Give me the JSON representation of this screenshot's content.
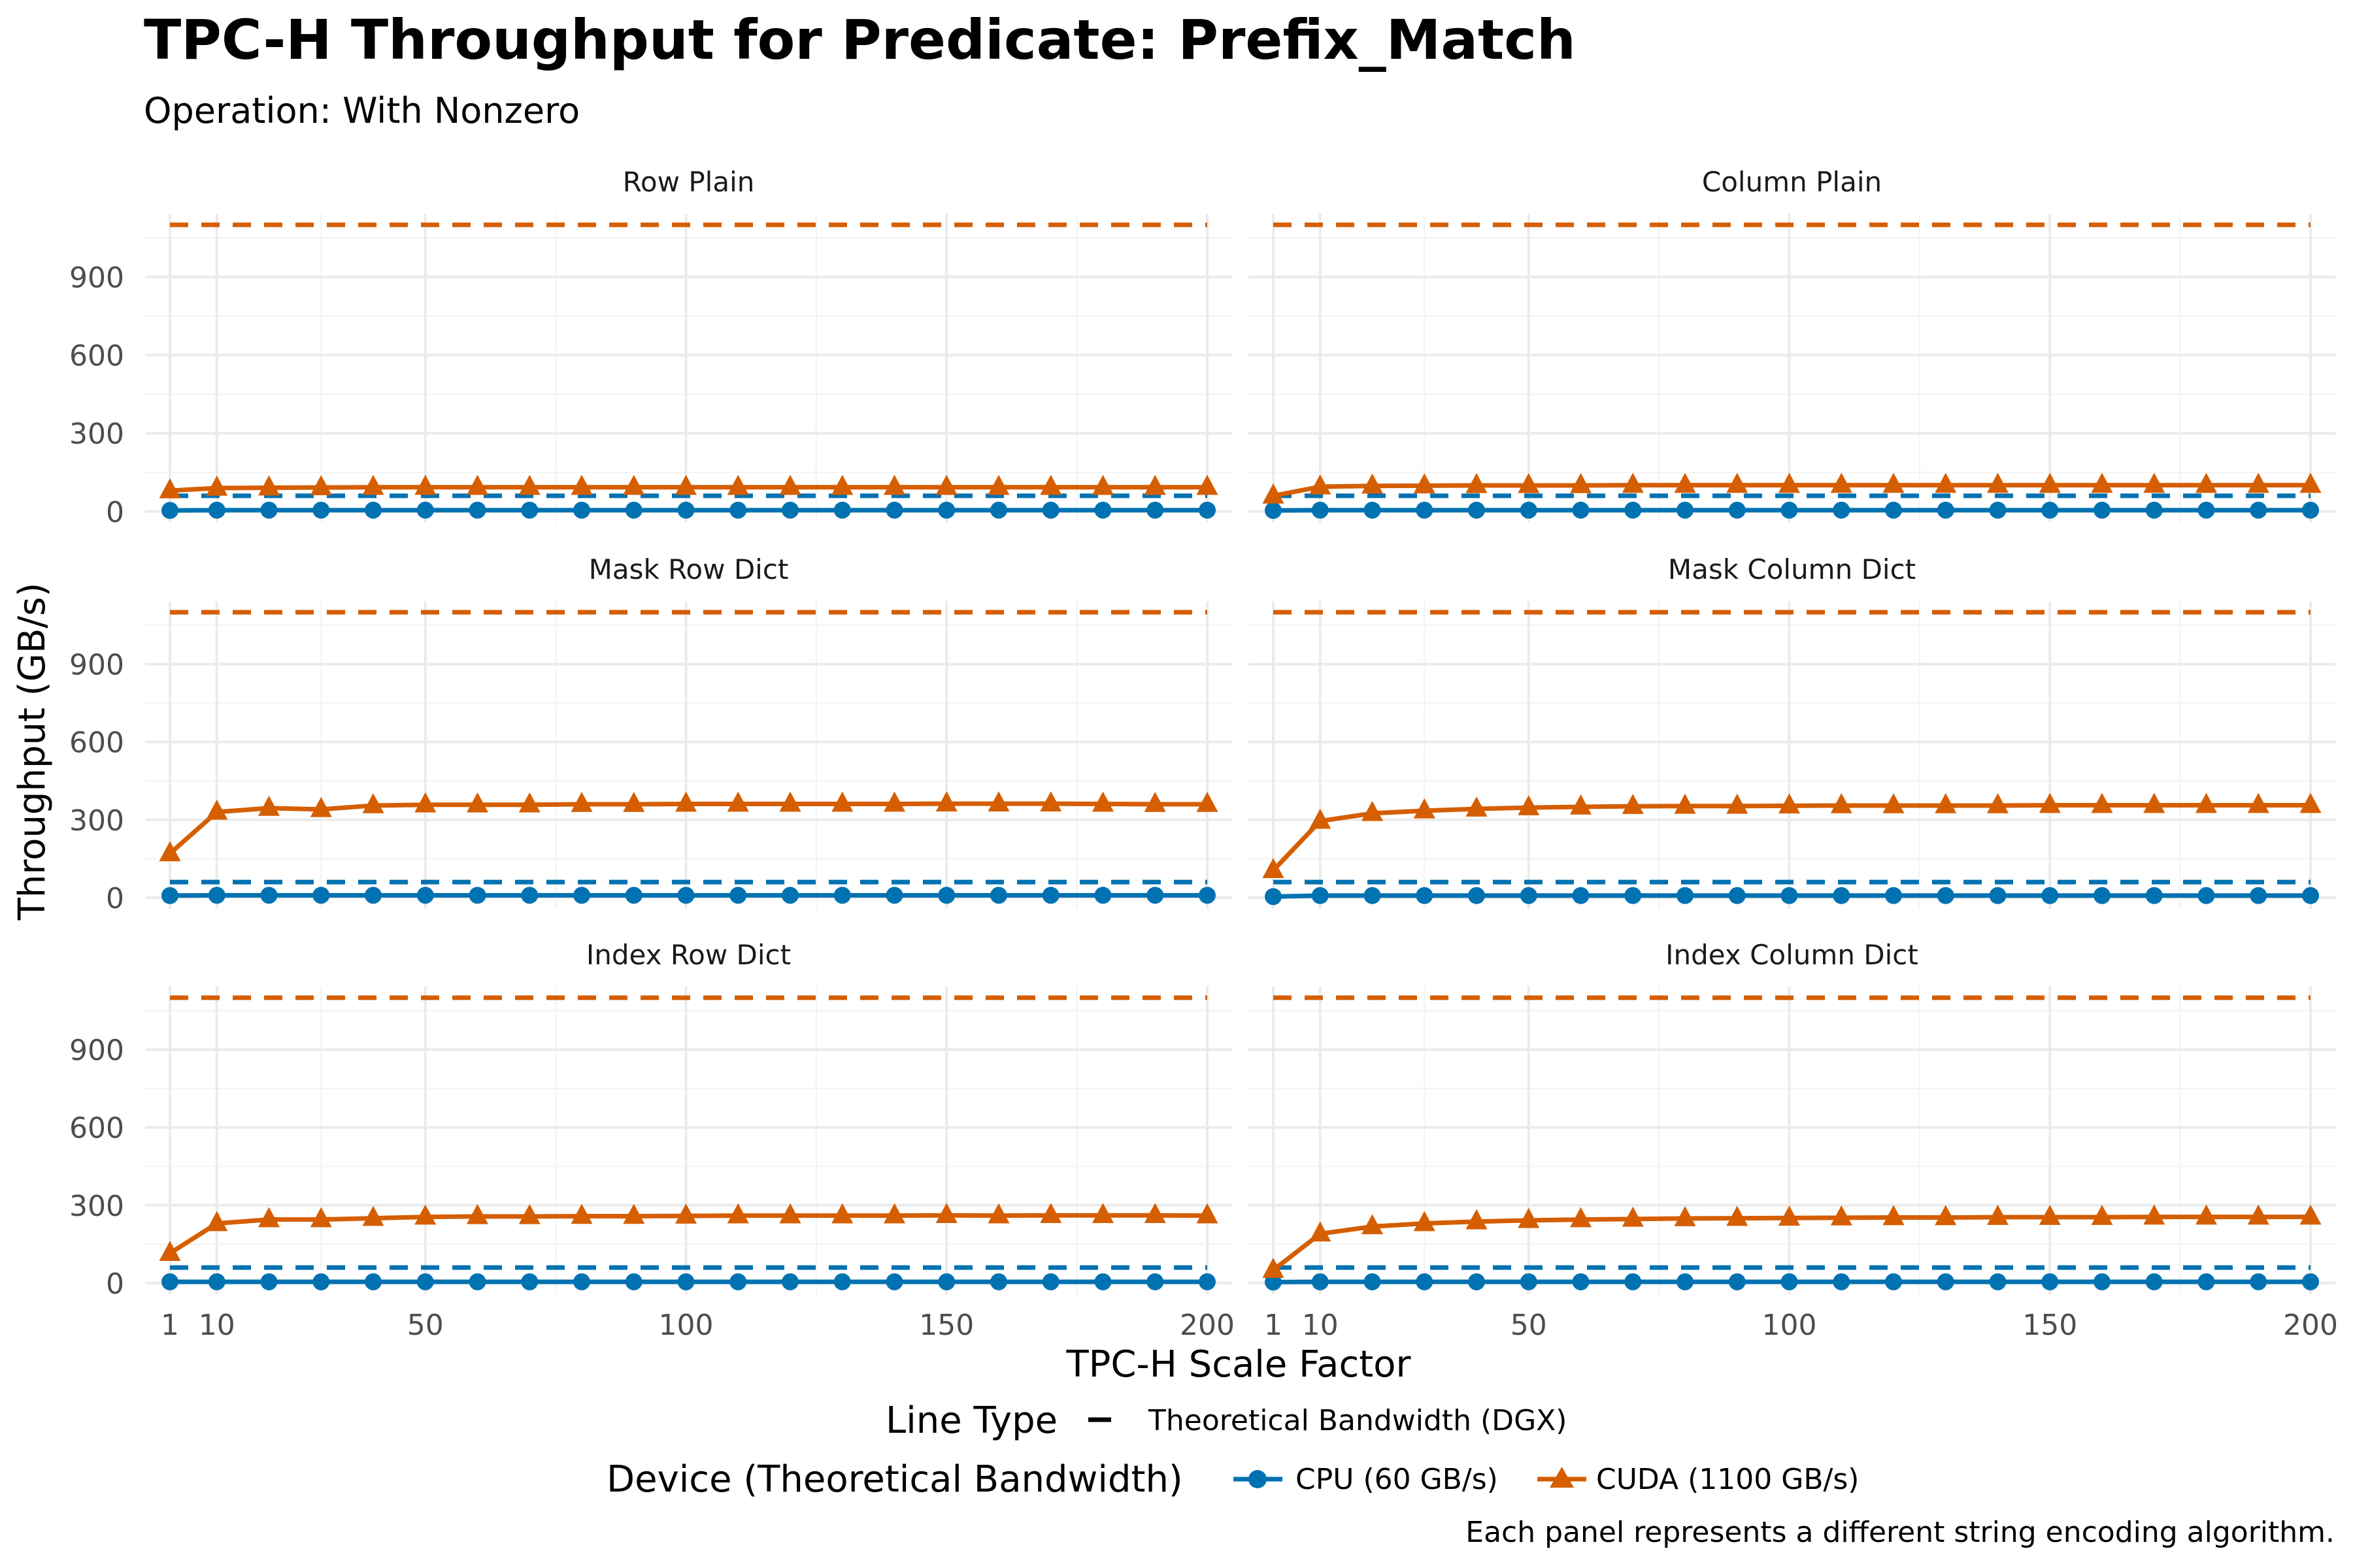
{
  "title": "TPC-H Throughput for Predicate: Prefix_Match",
  "subtitle": "Operation: With Nonzero",
  "caption": "Each panel represents a different string encoding algorithm.",
  "colors": {
    "cpu": "#0072B2",
    "cuda": "#D55E00",
    "grid_major": "#EBEBEB",
    "grid_minor": "#F4F4F4"
  },
  "legend": {
    "linetype_title": "Line Type",
    "linetype_label": "Theoretical Bandwidth (DGX)",
    "device_title": "Device (Theoretical Bandwidth)",
    "device_labels": [
      "CPU (60 GB/s)",
      "CUDA (1100 GB/s)"
    ]
  },
  "chart_data": {
    "type": "line",
    "facet_layout": "2 columns x 3 rows",
    "xlabel": "TPC-H Scale Factor",
    "ylabel": "Throughput (GB/s)",
    "x_ticks": [
      1,
      10,
      50,
      100,
      150,
      200
    ],
    "y_ticks": [
      0,
      300,
      600,
      900
    ],
    "xlim": [
      1,
      200
    ],
    "ylim": [
      0,
      1100
    ],
    "grid": true,
    "legend_position": "bottom",
    "x": [
      1,
      10,
      20,
      30,
      40,
      50,
      60,
      70,
      80,
      90,
      100,
      110,
      120,
      130,
      140,
      150,
      160,
      170,
      180,
      190,
      200
    ],
    "reference_lines": [
      {
        "name": "CPU (60 GB/s)",
        "value": 60,
        "style": "dashed"
      },
      {
        "name": "CUDA (1100 GB/s)",
        "value": 1100,
        "style": "dashed"
      }
    ],
    "panels": [
      {
        "name": "Row Plain",
        "series": [
          {
            "name": "CPU (60 GB/s)",
            "values": [
              4,
              5,
              5,
              5,
              5,
              5,
              5,
              5,
              5,
              5,
              5,
              5,
              5,
              5,
              5,
              5,
              5,
              5,
              5,
              5,
              5
            ]
          },
          {
            "name": "CUDA (1100 GB/s)",
            "values": [
              80,
              90,
              91,
              92,
              93,
              93,
              93,
              93,
              93,
              93,
              93,
              93,
              93,
              93,
              93,
              93,
              93,
              93,
              93,
              93,
              93
            ]
          }
        ]
      },
      {
        "name": "Column Plain",
        "series": [
          {
            "name": "CPU (60 GB/s)",
            "values": [
              4,
              5,
              5,
              5,
              5,
              5,
              5,
              5,
              5,
              5,
              5,
              5,
              5,
              5,
              5,
              5,
              5,
              5,
              5,
              5,
              5
            ]
          },
          {
            "name": "CUDA (1100 GB/s)",
            "values": [
              60,
              95,
              98,
              99,
              100,
              100,
              100,
              101,
              101,
              101,
              101,
              101,
              101,
              101,
              101,
              101,
              101,
              101,
              101,
              101,
              101
            ]
          }
        ]
      },
      {
        "name": "Mask Row Dict",
        "series": [
          {
            "name": "CPU (60 GB/s)",
            "values": [
              8,
              9,
              9,
              9,
              9,
              9,
              9,
              9,
              9,
              9,
              9,
              9,
              9,
              9,
              9,
              9,
              9,
              9,
              9,
              9,
              9
            ]
          },
          {
            "name": "CUDA (1100 GB/s)",
            "values": [
              170,
              330,
              345,
              340,
              355,
              358,
              358,
              358,
              360,
              360,
              361,
              361,
              361,
              361,
              361,
              362,
              362,
              362,
              361,
              360,
              360
            ]
          }
        ]
      },
      {
        "name": "Mask Column Dict",
        "series": [
          {
            "name": "CPU (60 GB/s)",
            "values": [
              4,
              8,
              8,
              8,
              8,
              8,
              8,
              8,
              8,
              8,
              8,
              8,
              8,
              8,
              8,
              8,
              8,
              8,
              8,
              8,
              8
            ]
          },
          {
            "name": "CUDA (1100 GB/s)",
            "values": [
              105,
              295,
              325,
              335,
              342,
              347,
              350,
              352,
              353,
              353,
              354,
              355,
              355,
              355,
              355,
              356,
              356,
              356,
              356,
              356,
              356
            ]
          }
        ]
      },
      {
        "name": "Index Row Dict",
        "series": [
          {
            "name": "CPU (60 GB/s)",
            "values": [
              5,
              5,
              5,
              5,
              5,
              5,
              5,
              5,
              5,
              5,
              5,
              5,
              5,
              5,
              5,
              5,
              5,
              5,
              5,
              5,
              5
            ]
          },
          {
            "name": "CUDA (1100 GB/s)",
            "values": [
              115,
              230,
              245,
              245,
              250,
              255,
              257,
              257,
              258,
              258,
              259,
              260,
              260,
              260,
              260,
              261,
              260,
              261,
              261,
              261,
              260
            ]
          }
        ]
      },
      {
        "name": "Index Column Dict",
        "series": [
          {
            "name": "CPU (60 GB/s)",
            "values": [
              4,
              5,
              5,
              5,
              5,
              5,
              5,
              5,
              5,
              5,
              5,
              5,
              5,
              5,
              5,
              5,
              5,
              5,
              5,
              5,
              5
            ]
          },
          {
            "name": "CUDA (1100 GB/s)",
            "values": [
              50,
              190,
              218,
              230,
              237,
              242,
              245,
              247,
              249,
              250,
              251,
              252,
              253,
              253,
              254,
              254,
              254,
              255,
              255,
              255,
              255
            ]
          }
        ]
      }
    ]
  }
}
